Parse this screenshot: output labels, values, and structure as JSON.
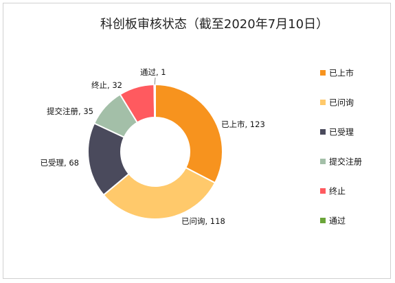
{
  "chart_data": {
    "type": "pie",
    "variant": "donut",
    "title": "科创板审核状态（截至2020年7月10日）",
    "legend_position": "right",
    "slices": [
      {
        "name": "已上市",
        "value": 123,
        "color": "#F7931E",
        "label": "已上市, 123"
      },
      {
        "name": "已问询",
        "value": 118,
        "color": "#FFC96B",
        "label": "已问询, 118"
      },
      {
        "name": "已受理",
        "value": 68,
        "color": "#4A4A5C",
        "label": "已受理, 68"
      },
      {
        "name": "提交注册",
        "value": 35,
        "color": "#A3BFA8",
        "label": "提交注册, 35"
      },
      {
        "name": "终止",
        "value": 32,
        "color": "#FF5A5F",
        "label": "终止, 32"
      },
      {
        "name": "通过",
        "value": 1,
        "color": "#6BA53A",
        "label": "通过, 1"
      }
    ]
  }
}
